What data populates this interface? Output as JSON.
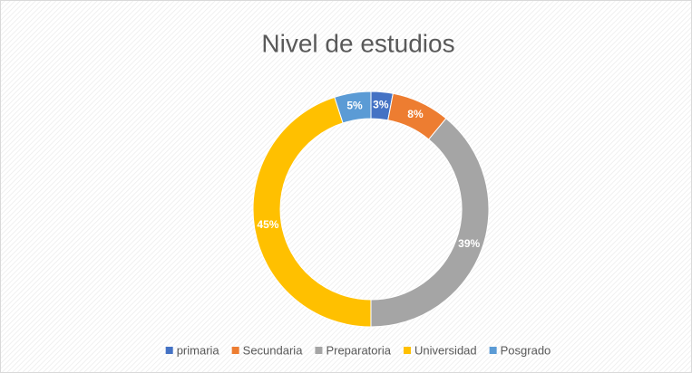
{
  "chart_data": {
    "type": "donut",
    "title": "Nivel de estudios",
    "categories": [
      "primaria",
      "Secundaria",
      "Preparatoria",
      "Universidad",
      "Posgrado"
    ],
    "values": [
      3,
      8,
      39,
      45,
      5
    ],
    "value_labels": [
      "3%",
      "8%",
      "39%",
      "45%",
      "5%"
    ],
    "colors": [
      "#4472c4",
      "#ed7d31",
      "#a5a5a5",
      "#ffc000",
      "#5b9bd5"
    ],
    "legend": "bottom"
  }
}
